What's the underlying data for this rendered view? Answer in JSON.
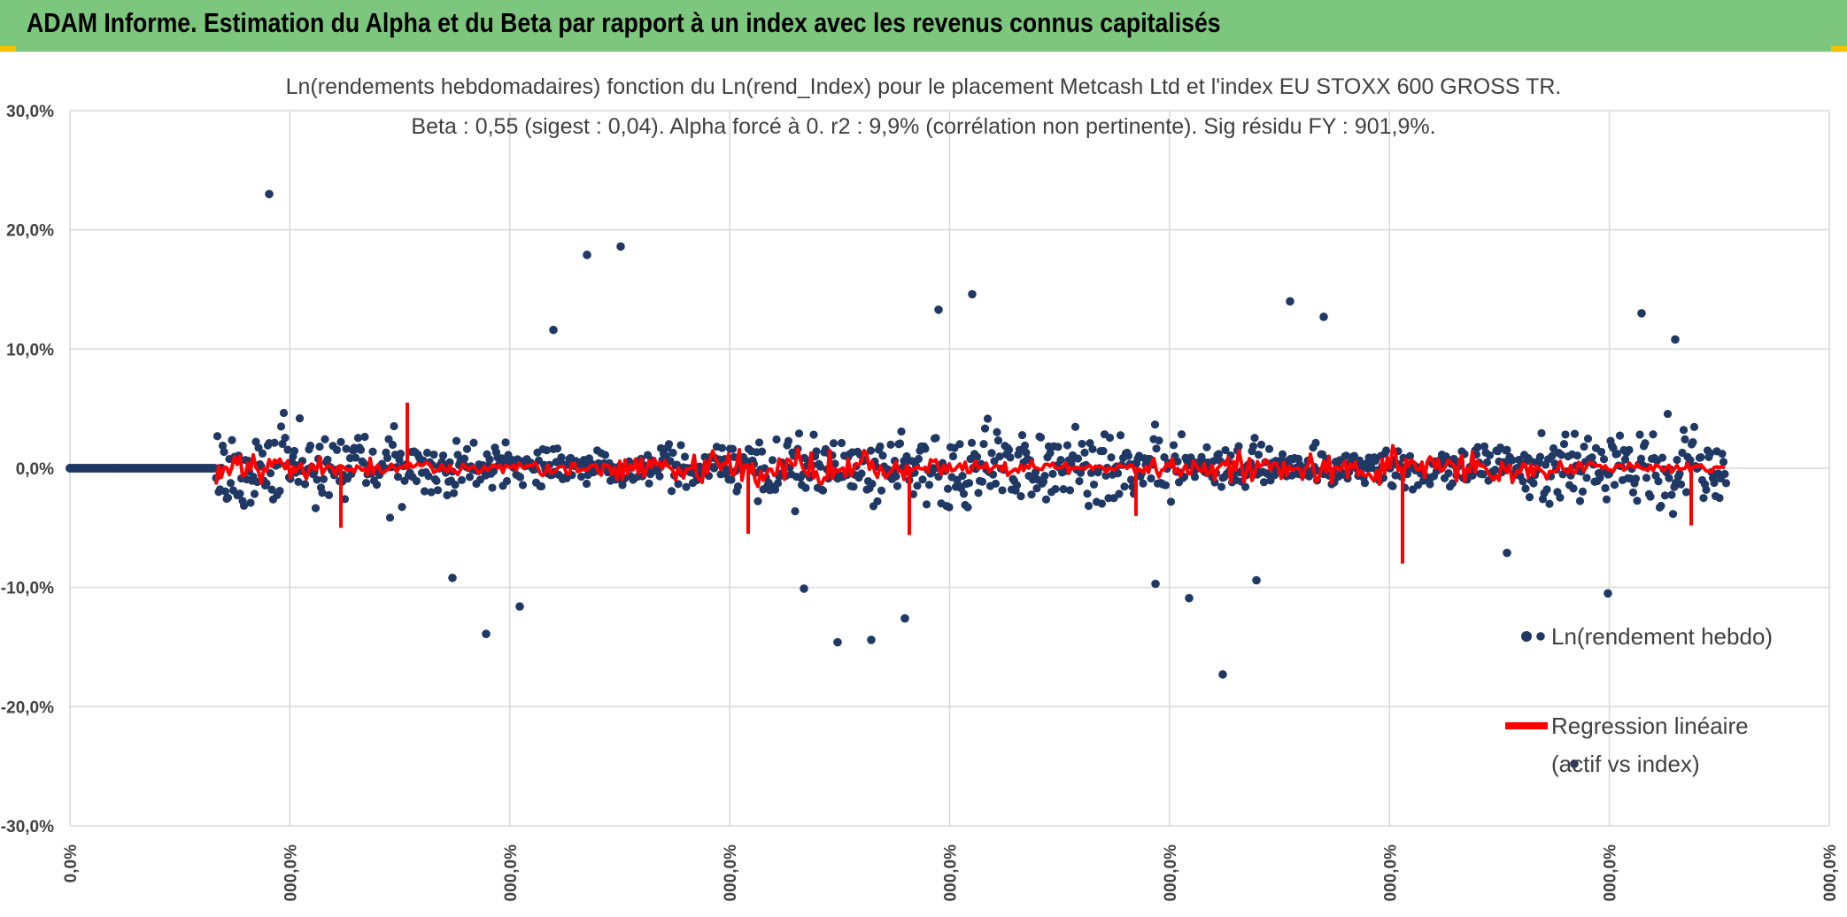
{
  "header": {
    "title": "ADAM Informe. Estimation du Alpha et du Beta par rapport à un index avec les revenus connus capitalisés"
  },
  "colors": {
    "banner": "#7dc67d",
    "points": "#1f3864",
    "regression": "#ff0000",
    "grid": "#d9d9d9",
    "text": "#404040"
  },
  "chart_data": {
    "type": "scatter",
    "title": "Ln(rendements hebdomadaires) fonction du Ln(rend_Index) pour le placement Metcash Ltd et l'index EU STOXX 600 GROSS TR.",
    "subtitle": "Beta : 0,55 (sigest : 0,04). Alpha forcé à 0. r2 : 9,9% (corrélation non pertinente). Sig résidu FY : 901,9%.",
    "ylim": [
      -0.3,
      0.3
    ],
    "y_ticks": [
      "30,0%",
      "20,0%",
      "10,0%",
      "0,0%",
      "-10,0%",
      "-20,0%",
      "-30,0%"
    ],
    "x_ticks": [
      "0,0%",
      "000,0%",
      "000,0%",
      "000,0%",
      "000,0%",
      "000,0%",
      "000,0%",
      "000,0%",
      "000,0%"
    ],
    "grid": true,
    "legend_position": "right",
    "series": [
      {
        "name": "Ln(rendement hebdo)",
        "kind": "scatter"
      },
      {
        "name": "Regression linéaire",
        "name_line2": "(actif vs index)",
        "kind": "line"
      }
    ],
    "notable_points": [
      0.23,
      0.186,
      0.146,
      0.127,
      0.108,
      0.179,
      0.133,
      0.14,
      0.13,
      0.116,
      -0.126,
      -0.094,
      -0.105,
      -0.116,
      -0.144,
      -0.173,
      -0.248,
      -0.139,
      -0.146,
      -0.109,
      -0.141,
      -0.092,
      -0.101,
      -0.097,
      -0.071
    ]
  }
}
